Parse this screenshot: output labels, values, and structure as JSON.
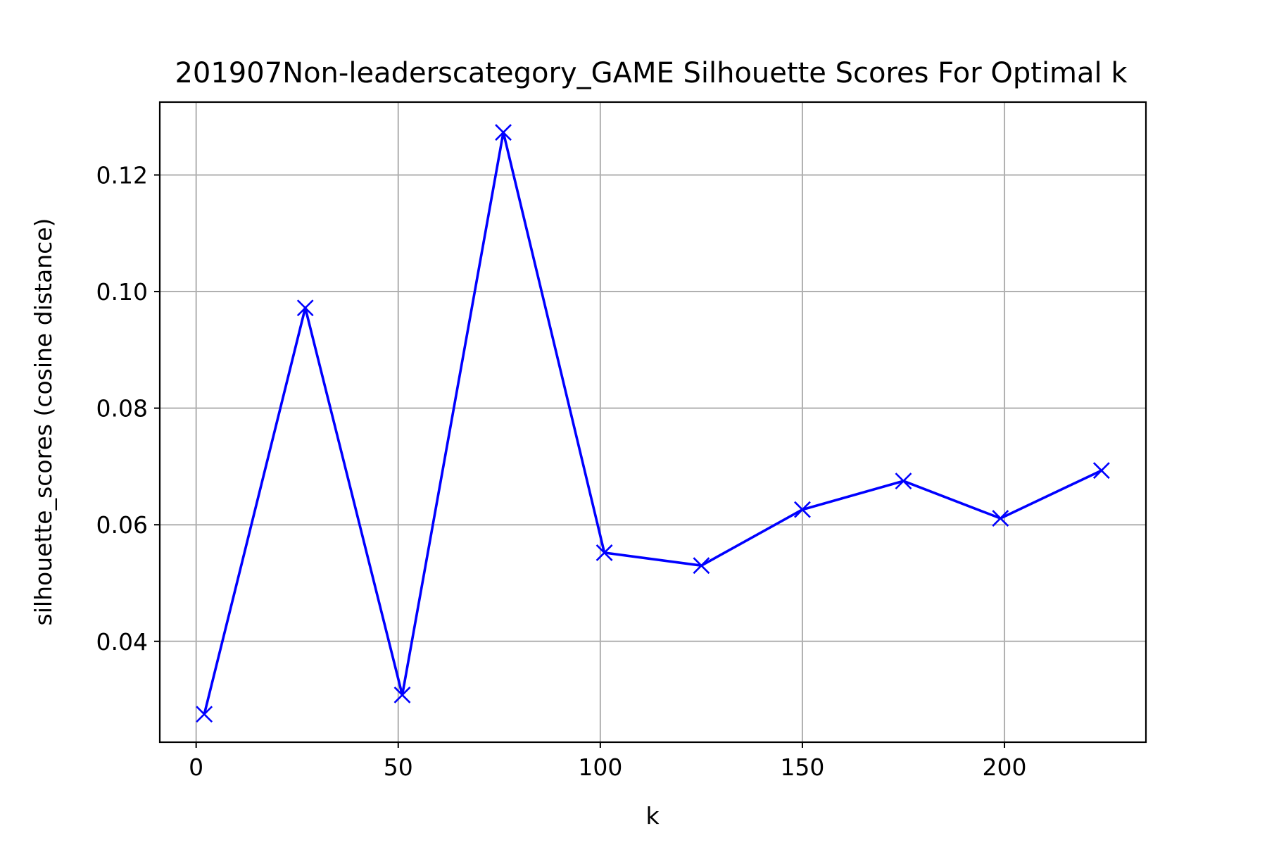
{
  "chart_data": {
    "type": "line",
    "title": "201907Non-leaderscategory_GAME Silhouette Scores For Optimal k",
    "xlabel": "k",
    "ylabel": "silhouette_scores (cosine distance)",
    "x": [
      2,
      27,
      51,
      76,
      101,
      125,
      150,
      175,
      199,
      224
    ],
    "series": [
      {
        "name": "",
        "values": [
          0.0275,
          0.0972,
          0.0308,
          0.1273,
          0.0552,
          0.053,
          0.0626,
          0.0675,
          0.0611,
          0.0693
        ],
        "color": "#0000ff",
        "marker": "x"
      }
    ],
    "xlim": [
      -9,
      235
    ],
    "ylim": [
      0.0227,
      0.1325
    ],
    "xticks": [
      0,
      50,
      100,
      150,
      200
    ],
    "xtick_labels": [
      "0",
      "50",
      "100",
      "150",
      "200"
    ],
    "yticks": [
      0.04,
      0.06,
      0.08,
      0.1,
      0.12
    ],
    "ytick_labels": [
      "0.04",
      "0.06",
      "0.08",
      "0.10",
      "0.12"
    ],
    "grid": true,
    "legend": "none"
  }
}
